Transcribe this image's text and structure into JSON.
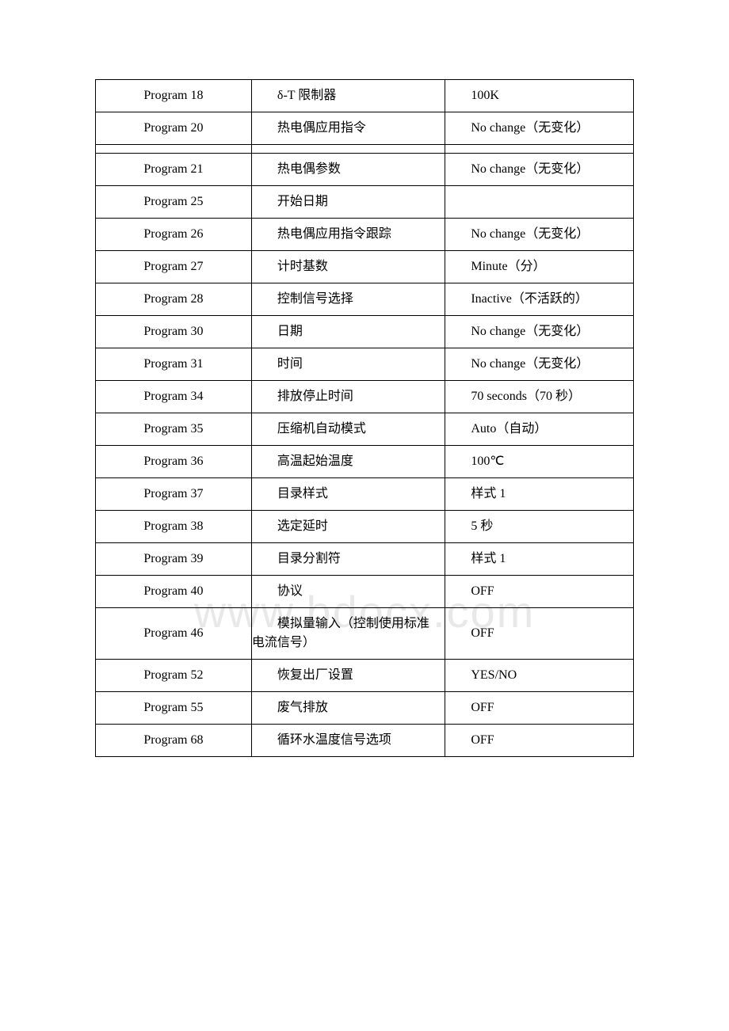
{
  "table": {
    "border_color": "#000000",
    "background_color": "#ffffff",
    "font_size": 16,
    "text_color": "#000000",
    "col_widths_percent": [
      29,
      36,
      35
    ],
    "rows": [
      {
        "c1": "Program 18",
        "c2": "δ-T 限制器",
        "c3": "100K"
      },
      {
        "c1": "Program 20",
        "c2": "热电偶应用指令",
        "c3": "No change（无变化）"
      },
      {
        "spacer": true
      },
      {
        "c1": "Program 21",
        "c2": "热电偶参数",
        "c3": "No change（无变化）"
      },
      {
        "c1": "Program 25",
        "c2": "开始日期",
        "c3": ""
      },
      {
        "c1": "Program 26",
        "c2": "热电偶应用指令跟踪",
        "c3": "No change（无变化）"
      },
      {
        "c1": "Program 27",
        "c2": "计时基数",
        "c3": "Minute（分）"
      },
      {
        "c1": "Program 28",
        "c2": "控制信号选择",
        "c3": "Inactive（不活跃的）"
      },
      {
        "c1": "Program 30",
        "c2": "日期",
        "c3": "No change（无变化）"
      },
      {
        "c1": "Program 31",
        "c2": "时间",
        "c3": "No change（无变化）"
      },
      {
        "c1": "Program 34",
        "c2": "排放停止时间",
        "c3": "70 seconds（70 秒）"
      },
      {
        "c1": "Program 35",
        "c2": "压缩机自动模式",
        "c3": "Auto（自动）"
      },
      {
        "c1": "Program 36",
        "c2": "高温起始温度",
        "c3": "100℃"
      },
      {
        "c1": "Program 37",
        "c2": "目录样式",
        "c3": "样式 1"
      },
      {
        "c1": "Program 38",
        "c2": "选定延时",
        "c3": "5 秒"
      },
      {
        "c1": "Program 39",
        "c2": "目录分割符",
        "c3": "样式 1"
      },
      {
        "c1": "Program 40",
        "c2": "协议",
        "c3": "OFF"
      },
      {
        "c1": "Program 46",
        "c2": "模拟量输入（控制使用标准电流信号）",
        "c3": "OFF"
      },
      {
        "c1": "Program 52",
        "c2": "恢复出厂设置",
        "c3": "YES/NO"
      },
      {
        "c1": "Program 55",
        "c2": "废气排放",
        "c3": "OFF"
      },
      {
        "c1": "Program 68",
        "c2": "循环水温度信号选项",
        "c3": "OFF"
      }
    ]
  },
  "watermark": {
    "text": "www.bdocx.com",
    "color": "#e8e8e8",
    "font_size": 56
  }
}
